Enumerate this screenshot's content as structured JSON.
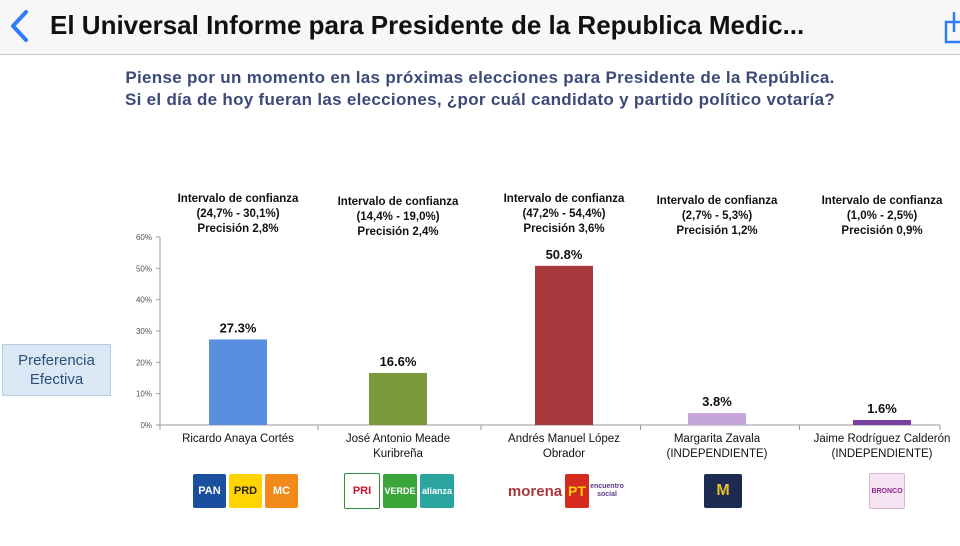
{
  "header": {
    "title": "El Universal Informe para Presidente de la Republica Medic..."
  },
  "question": {
    "line1": "Piense por un momento en las próximas elecciones para Presidente de la República.",
    "line2": "Si el día de hoy fueran las elecciones, ¿por cuál candidato y partido político votaría?"
  },
  "side_label": {
    "line1": "Preferencia",
    "line2": "Efectiva"
  },
  "chart_data": {
    "type": "bar",
    "title": "Piense por un momento en las próximas elecciones para Presidente de la República. Si el día de hoy fueran las elecciones, ¿por cuál candidato y partido político votaría?",
    "ylabel": "Preferencia Efectiva",
    "ylim": [
      0,
      60
    ],
    "yticks": [
      "0%",
      "10%",
      "20%",
      "30%",
      "40%",
      "50%",
      "60%"
    ],
    "categories": [
      "Ricardo Anaya Cortés",
      "José Antonio Meade Kuribreña",
      "Andrés Manuel López Obrador",
      "Margarita Zavala (INDEPENDIENTE)",
      "Jaime Rodríguez Calderón (INDEPENDIENTE)"
    ],
    "values": [
      27.3,
      16.6,
      50.8,
      3.8,
      1.6
    ],
    "value_labels": [
      "27.3%",
      "16.6%",
      "50.8%",
      "3.8%",
      "1.6%"
    ],
    "colors": [
      "#5a8fe0",
      "#79993a",
      "#a8393c",
      "#c4a6d8",
      "#7a3fa0"
    ],
    "intervals": [
      {
        "l1": "Intervalo de confianza",
        "l2": "(24,7% - 30,1%)",
        "l3": "Precisión 2,8%"
      },
      {
        "l1": "Intervalo de confianza",
        "l2": "(14,4% - 19,0%)",
        "l3": "Precisión 2,4%"
      },
      {
        "l1": "Intervalo de confianza",
        "l2": "(47,2% - 54,4%)",
        "l3": "Precisión 3,6%"
      },
      {
        "l1": "Intervalo de confianza",
        "l2": "(2,7% - 5,3%)",
        "l3": "Precisión 1,2%"
      },
      {
        "l1": "Intervalo de confianza",
        "l2": "(1,0% - 2,5%)",
        "l3": "Precisión 0,9%"
      }
    ],
    "candidates": [
      {
        "l1": "Ricardo Anaya Cortés",
        "l2": ""
      },
      {
        "l1": "José Antonio Meade",
        "l2": "Kuribreña"
      },
      {
        "l1": "Andrés Manuel López",
        "l2": "Obrador"
      },
      {
        "l1": "Margarita Zavala",
        "l2": "(INDEPENDIENTE)"
      },
      {
        "l1": "Jaime Rodríguez Calderón",
        "l2": "(INDEPENDIENTE)"
      }
    ]
  },
  "logos": {
    "pan": "PAN",
    "prd": "PRD",
    "mc": "MC",
    "pri": "PRI",
    "verde": "VERDE",
    "alianza": "alianza",
    "morena": "morena",
    "pt": "PT",
    "encuentro": "encuentro social",
    "zavala": "M",
    "bronco": "BRONCO"
  }
}
